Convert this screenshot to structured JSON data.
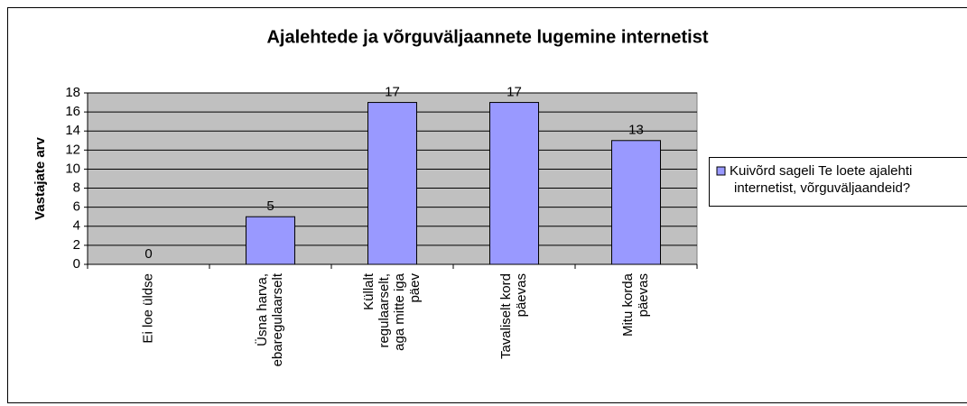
{
  "chart_data": {
    "type": "bar",
    "title": "Ajalehtede ja võrguväljaannete lugemine internetist",
    "y_label": "Vastajate arv",
    "categories": [
      "Ei loe üldse",
      "Üsna harva, ebaregulaarselt",
      "Küllalt regulaarselt, aga mitte iga päev",
      "Tavaliselt kord päevas",
      "Mitu korda päevas"
    ],
    "series": [
      {
        "name": "Kuivõrd sageli Te loete ajalehti internetist, võrguväljaandeid?",
        "color": "#9999ff",
        "values": [
          0,
          5,
          17,
          17,
          13
        ]
      }
    ],
    "ylim": [
      0,
      18
    ],
    "yticks": [
      0,
      2,
      4,
      6,
      8,
      10,
      12,
      14,
      16,
      18
    ],
    "grid": true,
    "legend": "right"
  }
}
